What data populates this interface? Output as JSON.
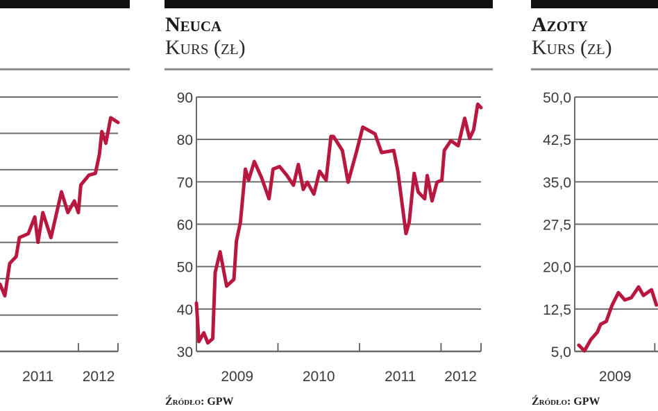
{
  "colors": {
    "line": "#b8173f",
    "grid": "#6a6a6a",
    "header_bar": "#111111"
  },
  "chart_data": [
    {
      "type": "line",
      "title": "",
      "subtitle": "",
      "xlabel": "",
      "ylabel": "",
      "x_tick_labels": [
        "2011",
        "2012"
      ],
      "y_tick_labels": [],
      "xlim": [
        2011.03,
        2012.49
      ],
      "ylim": [
        0,
        7
      ],
      "grid": true,
      "source": "",
      "series": [
        {
          "x": [
            2011.03,
            2011.09,
            2011.15,
            2011.23,
            2011.27,
            2011.38,
            2011.46,
            2011.5,
            2011.56,
            2011.66,
            2011.79,
            2011.87,
            2011.95,
            2012.0,
            2012.03,
            2012.13,
            2012.21,
            2012.26,
            2012.29,
            2012.34,
            2012.4,
            2012.49
          ],
          "y": [
            1.85,
            1.53,
            2.42,
            2.61,
            3.13,
            3.24,
            3.7,
            3.0,
            3.82,
            3.13,
            4.39,
            3.82,
            4.14,
            3.82,
            4.58,
            4.85,
            4.9,
            5.42,
            6.05,
            5.73,
            6.43,
            6.3
          ]
        }
      ]
    },
    {
      "type": "line",
      "title": "Neuca",
      "subtitle": "Kurs (zł)",
      "xlabel": "",
      "ylabel": "",
      "x_tick_labels": [
        "2009",
        "2010",
        "2011",
        "2012"
      ],
      "y_tick_labels": [
        "30",
        "40",
        "50",
        "60",
        "70",
        "80",
        "90"
      ],
      "xlim": [
        2009,
        2012.49
      ],
      "ylim": [
        30,
        90
      ],
      "grid": true,
      "source": "Źródło: GPW",
      "series": [
        {
          "x": [
            2009.0,
            2009.03,
            2009.09,
            2009.14,
            2009.2,
            2009.23,
            2009.29,
            2009.37,
            2009.46,
            2009.49,
            2009.54,
            2009.6,
            2009.64,
            2009.71,
            2009.8,
            2009.89,
            2009.94,
            2010.02,
            2010.11,
            2010.19,
            2010.25,
            2010.31,
            2010.36,
            2010.44,
            2010.51,
            2010.59,
            2010.65,
            2010.68,
            2010.79,
            2010.86,
            2010.96,
            2011.04,
            2011.19,
            2011.27,
            2011.42,
            2011.47,
            2011.57,
            2011.61,
            2011.67,
            2011.72,
            2011.8,
            2011.83,
            2011.89,
            2011.95,
            2012.01,
            2012.04,
            2012.12,
            2012.21,
            2012.29,
            2012.35,
            2012.4,
            2012.45,
            2012.49
          ],
          "y": [
            41.4,
            32.3,
            34.4,
            32,
            33,
            48.6,
            53.5,
            45.4,
            47,
            56,
            60.5,
            73,
            70.4,
            74.8,
            70.9,
            66,
            73,
            73.6,
            71.5,
            69.2,
            74.1,
            68.2,
            69.9,
            67.1,
            72.5,
            70.4,
            80.7,
            80.7,
            77.4,
            69.9,
            76.9,
            82.9,
            81.3,
            76.9,
            77.4,
            72.5,
            57.8,
            60.5,
            72,
            67.6,
            66,
            71.5,
            65.5,
            69.9,
            70.4,
            77.4,
            79.7,
            78.5,
            85,
            80.2,
            82.3,
            88.3,
            87.5
          ]
        }
      ]
    },
    {
      "type": "line",
      "title": "Azoty",
      "subtitle": "Kurs (zł)",
      "xlabel": "",
      "ylabel": "",
      "x_tick_labels": [
        "2009"
      ],
      "y_tick_labels": [
        "5,0",
        "12,5",
        "20,0",
        "27,5",
        "35,0",
        "42,5",
        "50,0"
      ],
      "xlim": [
        2009,
        2010.03
      ],
      "ylim": [
        5,
        50
      ],
      "grid": true,
      "source": "Źródło: GPW",
      "series": [
        {
          "x": [
            2009.05,
            2009.12,
            2009.2,
            2009.28,
            2009.32,
            2009.39,
            2009.46,
            2009.54,
            2009.62,
            2009.7,
            2009.79,
            2009.85,
            2009.95,
            2010.01
          ],
          "y": [
            6.1,
            5.1,
            7.1,
            8.4,
            9.8,
            10.3,
            13.1,
            15.4,
            14.1,
            14.5,
            16.4,
            14.9,
            15.9,
            13.2
          ]
        }
      ]
    }
  ]
}
